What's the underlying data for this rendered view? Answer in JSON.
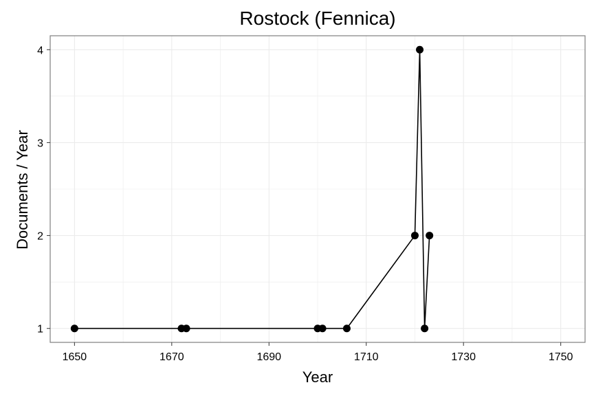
{
  "chart_data": {
    "type": "line",
    "title": "Rostock (Fennica)",
    "xlabel": "Year",
    "ylabel": "Documents / Year",
    "x_ticks": [
      1650,
      1670,
      1690,
      1710,
      1730,
      1750
    ],
    "y_ticks": [
      1,
      2,
      3,
      4
    ],
    "xlim": [
      1645,
      1755
    ],
    "ylim": [
      0.85,
      4.15
    ],
    "grid": true,
    "series": [
      {
        "x": [
          1650,
          1672,
          1673,
          1700,
          1701,
          1706,
          1720,
          1721,
          1722,
          1723
        ],
        "y": [
          1,
          1,
          1,
          1,
          1,
          1,
          2,
          4,
          1,
          2
        ]
      }
    ],
    "colors": {
      "line": "#000000",
      "point": "#000000",
      "grid": "#ebebeb",
      "frame": "#7f7f7f",
      "tick": "#333333"
    }
  }
}
